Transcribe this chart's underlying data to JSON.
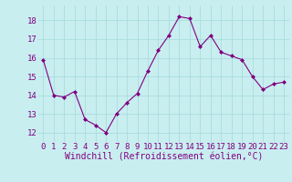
{
  "x": [
    0,
    1,
    2,
    3,
    4,
    5,
    6,
    7,
    8,
    9,
    10,
    11,
    12,
    13,
    14,
    15,
    16,
    17,
    18,
    19,
    20,
    21,
    22,
    23
  ],
  "y": [
    15.9,
    14.0,
    13.9,
    14.2,
    12.7,
    12.4,
    12.0,
    13.0,
    13.6,
    14.1,
    15.3,
    16.4,
    17.2,
    18.2,
    18.1,
    16.6,
    17.2,
    16.3,
    16.1,
    15.9,
    15.0,
    14.3,
    14.6,
    14.7
  ],
  "line_color": "#800080",
  "marker": "D",
  "marker_size": 2.0,
  "bg_color": "#c8eef0",
  "grid_color": "#aadddd",
  "xlabel": "Windchill (Refroidissement éolien,°C)",
  "xlabel_color": "#800080",
  "xlabel_fontsize": 7,
  "tick_color": "#800080",
  "tick_fontsize": 6.5,
  "ylim": [
    11.5,
    18.8
  ],
  "yticks": [
    12,
    13,
    14,
    15,
    16,
    17,
    18
  ],
  "xticks": [
    0,
    1,
    2,
    3,
    4,
    5,
    6,
    7,
    8,
    9,
    10,
    11,
    12,
    13,
    14,
    15,
    16,
    17,
    18,
    19,
    20,
    21,
    22,
    23
  ]
}
